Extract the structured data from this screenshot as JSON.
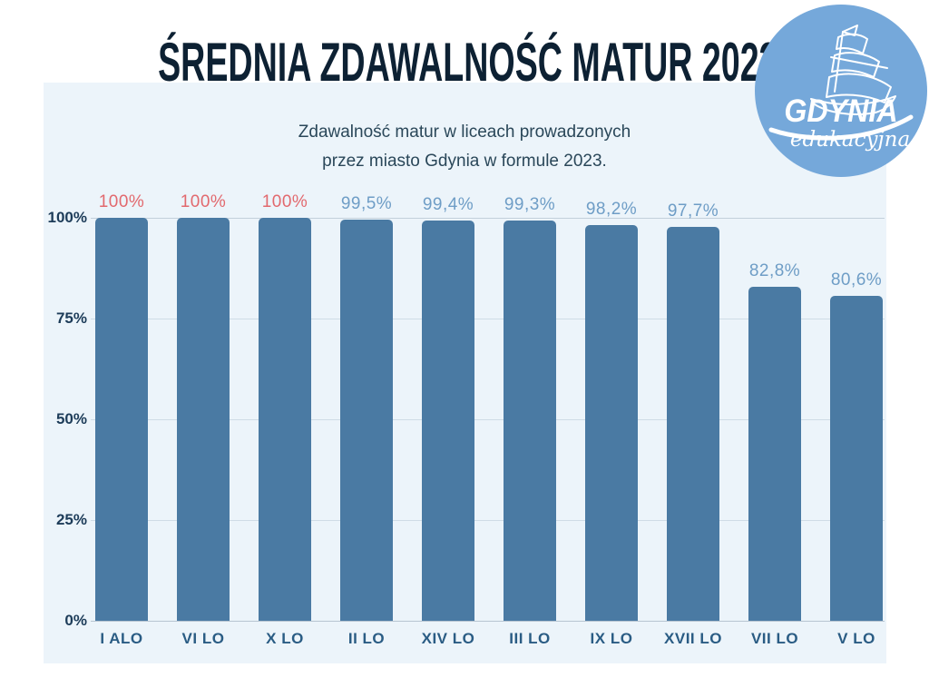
{
  "title": "ŚREDNIA ZDAWALNOŚĆ MATUR 2023",
  "subtitle": {
    "line1": "Zdawalność matur w liceach prowadzonych",
    "line2": "przez miasto Gdynia w formule 2023."
  },
  "logo": {
    "name": "GDYNIA",
    "tagline": "edukacyjna",
    "circle_color": "#75a8da"
  },
  "chart_data": {
    "type": "bar",
    "title": "ŚREDNIA ZDAWALNOŚĆ MATUR 2023",
    "categories": [
      "I ALO",
      "VI LO",
      "X LO",
      "II LO",
      "XIV LO",
      "III LO",
      "IX LO",
      "XVII LO",
      "VII LO",
      "V LO"
    ],
    "values": [
      100,
      100,
      100,
      99.5,
      99.4,
      99.3,
      98.2,
      97.7,
      82.8,
      80.6
    ],
    "value_labels": [
      "100%",
      "100%",
      "100%",
      "99,5%",
      "99,4%",
      "99,3%",
      "98,2%",
      "97,7%",
      "82,8%",
      "80,6%"
    ],
    "value_label_highlight": [
      true,
      true,
      true,
      false,
      false,
      false,
      false,
      false,
      false,
      false
    ],
    "xlabel": "",
    "ylabel": "",
    "ylim": [
      0,
      100
    ],
    "y_tick_values": [
      100,
      75,
      50,
      25,
      0
    ],
    "y_tick_labels": [
      "100%",
      "75%",
      "50%",
      "25%",
      "0%"
    ],
    "grid": "horizontal",
    "legend": "none",
    "bar_color": "#4a7aa3",
    "value_color_normal": "#6e9dc6",
    "value_color_highlight": "#e2696e",
    "panel_background": "#ecf4fa"
  }
}
